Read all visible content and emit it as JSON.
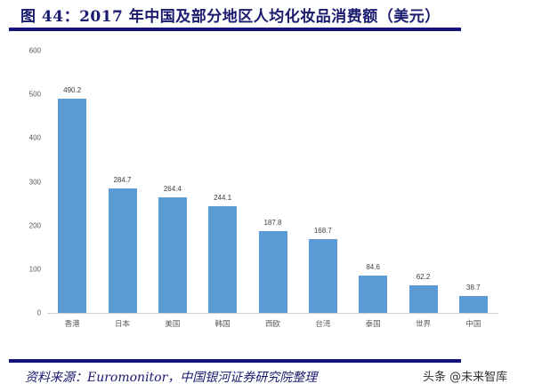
{
  "header": {
    "title": "图 44：2017 年中国及部分地区人均化妆品消费额（美元）"
  },
  "footer": {
    "source": "资料来源：Euromonitor，中国银河证券研究院整理",
    "watermark": "头条 @未来智库"
  },
  "colors": {
    "bar": "#5b9bd5",
    "title": "#1a1a6e",
    "rule": "#12127a"
  },
  "chart_data": {
    "type": "bar",
    "title": "2017年中国及部分地区人均化妆品消费额（美元）",
    "xlabel": "",
    "ylabel": "",
    "categories": [
      "香港",
      "日本",
      "美国",
      "韩国",
      "西欧",
      "台湾",
      "泰国",
      "世界",
      "中国"
    ],
    "values": [
      490.2,
      284.7,
      264.4,
      244.1,
      187.8,
      168.7,
      84.6,
      62.2,
      38.7
    ],
    "value_labels": [
      "490.2",
      "284.7",
      "264.4",
      "244.1",
      "187.8",
      "168.7",
      "84.6",
      "62.2",
      "38.7"
    ],
    "ylim": [
      0,
      600
    ],
    "yticks": [
      "0",
      "100",
      "200",
      "300",
      "400",
      "500",
      "600"
    ],
    "grid": false,
    "legend": null
  }
}
